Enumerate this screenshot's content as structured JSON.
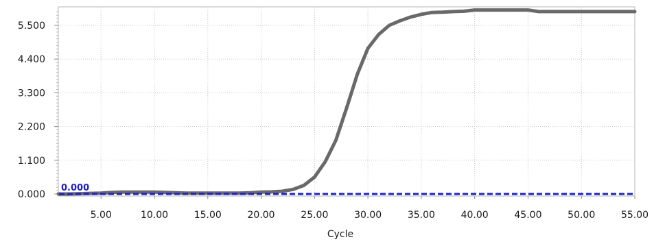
{
  "chart_data": {
    "type": "line",
    "xlabel": "Cycle",
    "ylabel": "",
    "xlim": [
      1,
      55
    ],
    "ylim": [
      0,
      6.0
    ],
    "x_ticks": [
      5,
      10,
      15,
      20,
      25,
      30,
      35,
      40,
      45,
      50,
      55
    ],
    "x_tick_labels": [
      "5.00",
      "10.00",
      "15.00",
      "20.00",
      "25.00",
      "30.00",
      "35.00",
      "40.00",
      "45.00",
      "50.00",
      "55.00"
    ],
    "y_ticks": [
      0,
      1.1,
      2.2,
      3.3,
      4.4,
      5.5
    ],
    "y_tick_labels": [
      "0.000",
      "1.100",
      "2.200",
      "3.300",
      "4.400",
      "5.500"
    ],
    "grid": true,
    "series": [
      {
        "color": "#696969",
        "x": [
          1,
          2,
          3,
          4,
          5,
          6,
          7,
          8,
          9,
          10,
          11,
          12,
          13,
          14,
          15,
          16,
          17,
          18,
          19,
          20,
          21,
          22,
          23,
          24,
          25,
          26,
          27,
          28,
          29,
          30,
          31,
          32,
          33,
          34,
          35,
          36,
          37,
          38,
          39,
          40,
          41,
          42,
          43,
          44,
          45,
          46,
          47,
          48,
          49,
          50,
          51,
          52,
          53,
          54,
          55
        ],
        "values": [
          0.0,
          0.0,
          0.01,
          0.02,
          0.03,
          0.05,
          0.06,
          0.06,
          0.06,
          0.06,
          0.05,
          0.04,
          0.03,
          0.03,
          0.03,
          0.03,
          0.03,
          0.03,
          0.04,
          0.06,
          0.07,
          0.09,
          0.15,
          0.28,
          0.55,
          1.05,
          1.75,
          2.8,
          3.9,
          4.75,
          5.2,
          5.5,
          5.65,
          5.77,
          5.86,
          5.92,
          5.93,
          5.95,
          5.96,
          6.0,
          6.0,
          6.0,
          6.0,
          6.0,
          6.0,
          5.95,
          5.95,
          5.95,
          5.95,
          5.95,
          5.95,
          5.95,
          5.95,
          5.95,
          5.95
        ]
      }
    ],
    "threshold": {
      "value": 0.0,
      "label": "0.000",
      "color": "#1e22c8",
      "style": "dashed"
    }
  },
  "colors": {
    "grid": "#c8c8c8",
    "frame": "#b4b4b4",
    "curve": "#696969",
    "threshold": "#1e22c8"
  }
}
